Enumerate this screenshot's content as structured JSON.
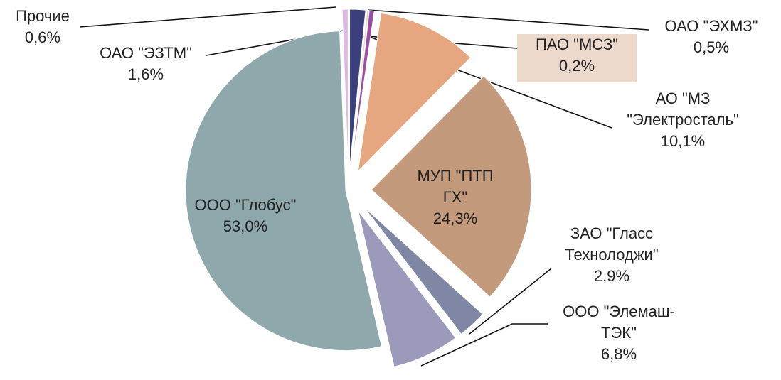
{
  "chart_data": {
    "type": "pie",
    "categories": [
      [
        "ОАО \"ЭЗТМ\""
      ],
      [
        "ПАО \"МСЗ\""
      ],
      [
        "ОАО \"ЭХМЗ\""
      ],
      [
        "АО \"МЗ",
        "\"Электросталь\""
      ],
      [
        "МУП \"ПТП",
        "ГХ\""
      ],
      [
        "ЗАО \"Гласс",
        "Технолоджи\""
      ],
      [
        "ООО \"Элемаш-",
        "ТЭК\""
      ],
      [
        "ООО \"Глобус\""
      ],
      [
        "Прочие"
      ]
    ],
    "values": [
      1.6,
      0.2,
      0.5,
      10.1,
      24.3,
      2.9,
      6.8,
      53.0,
      0.6
    ],
    "value_labels": [
      "1,6%",
      "0,2%",
      "0,5%",
      "10,1%",
      "24,3%",
      "2,9%",
      "6,8%",
      "53,0%",
      "0,6%"
    ],
    "colors": [
      "#3b3f7c",
      "#e9d3c6",
      "#9a4fa2",
      "#e6a67f",
      "#c49a7d",
      "#7f87a4",
      "#9c9aba",
      "#8fa8ab",
      "#dcbadf"
    ]
  }
}
